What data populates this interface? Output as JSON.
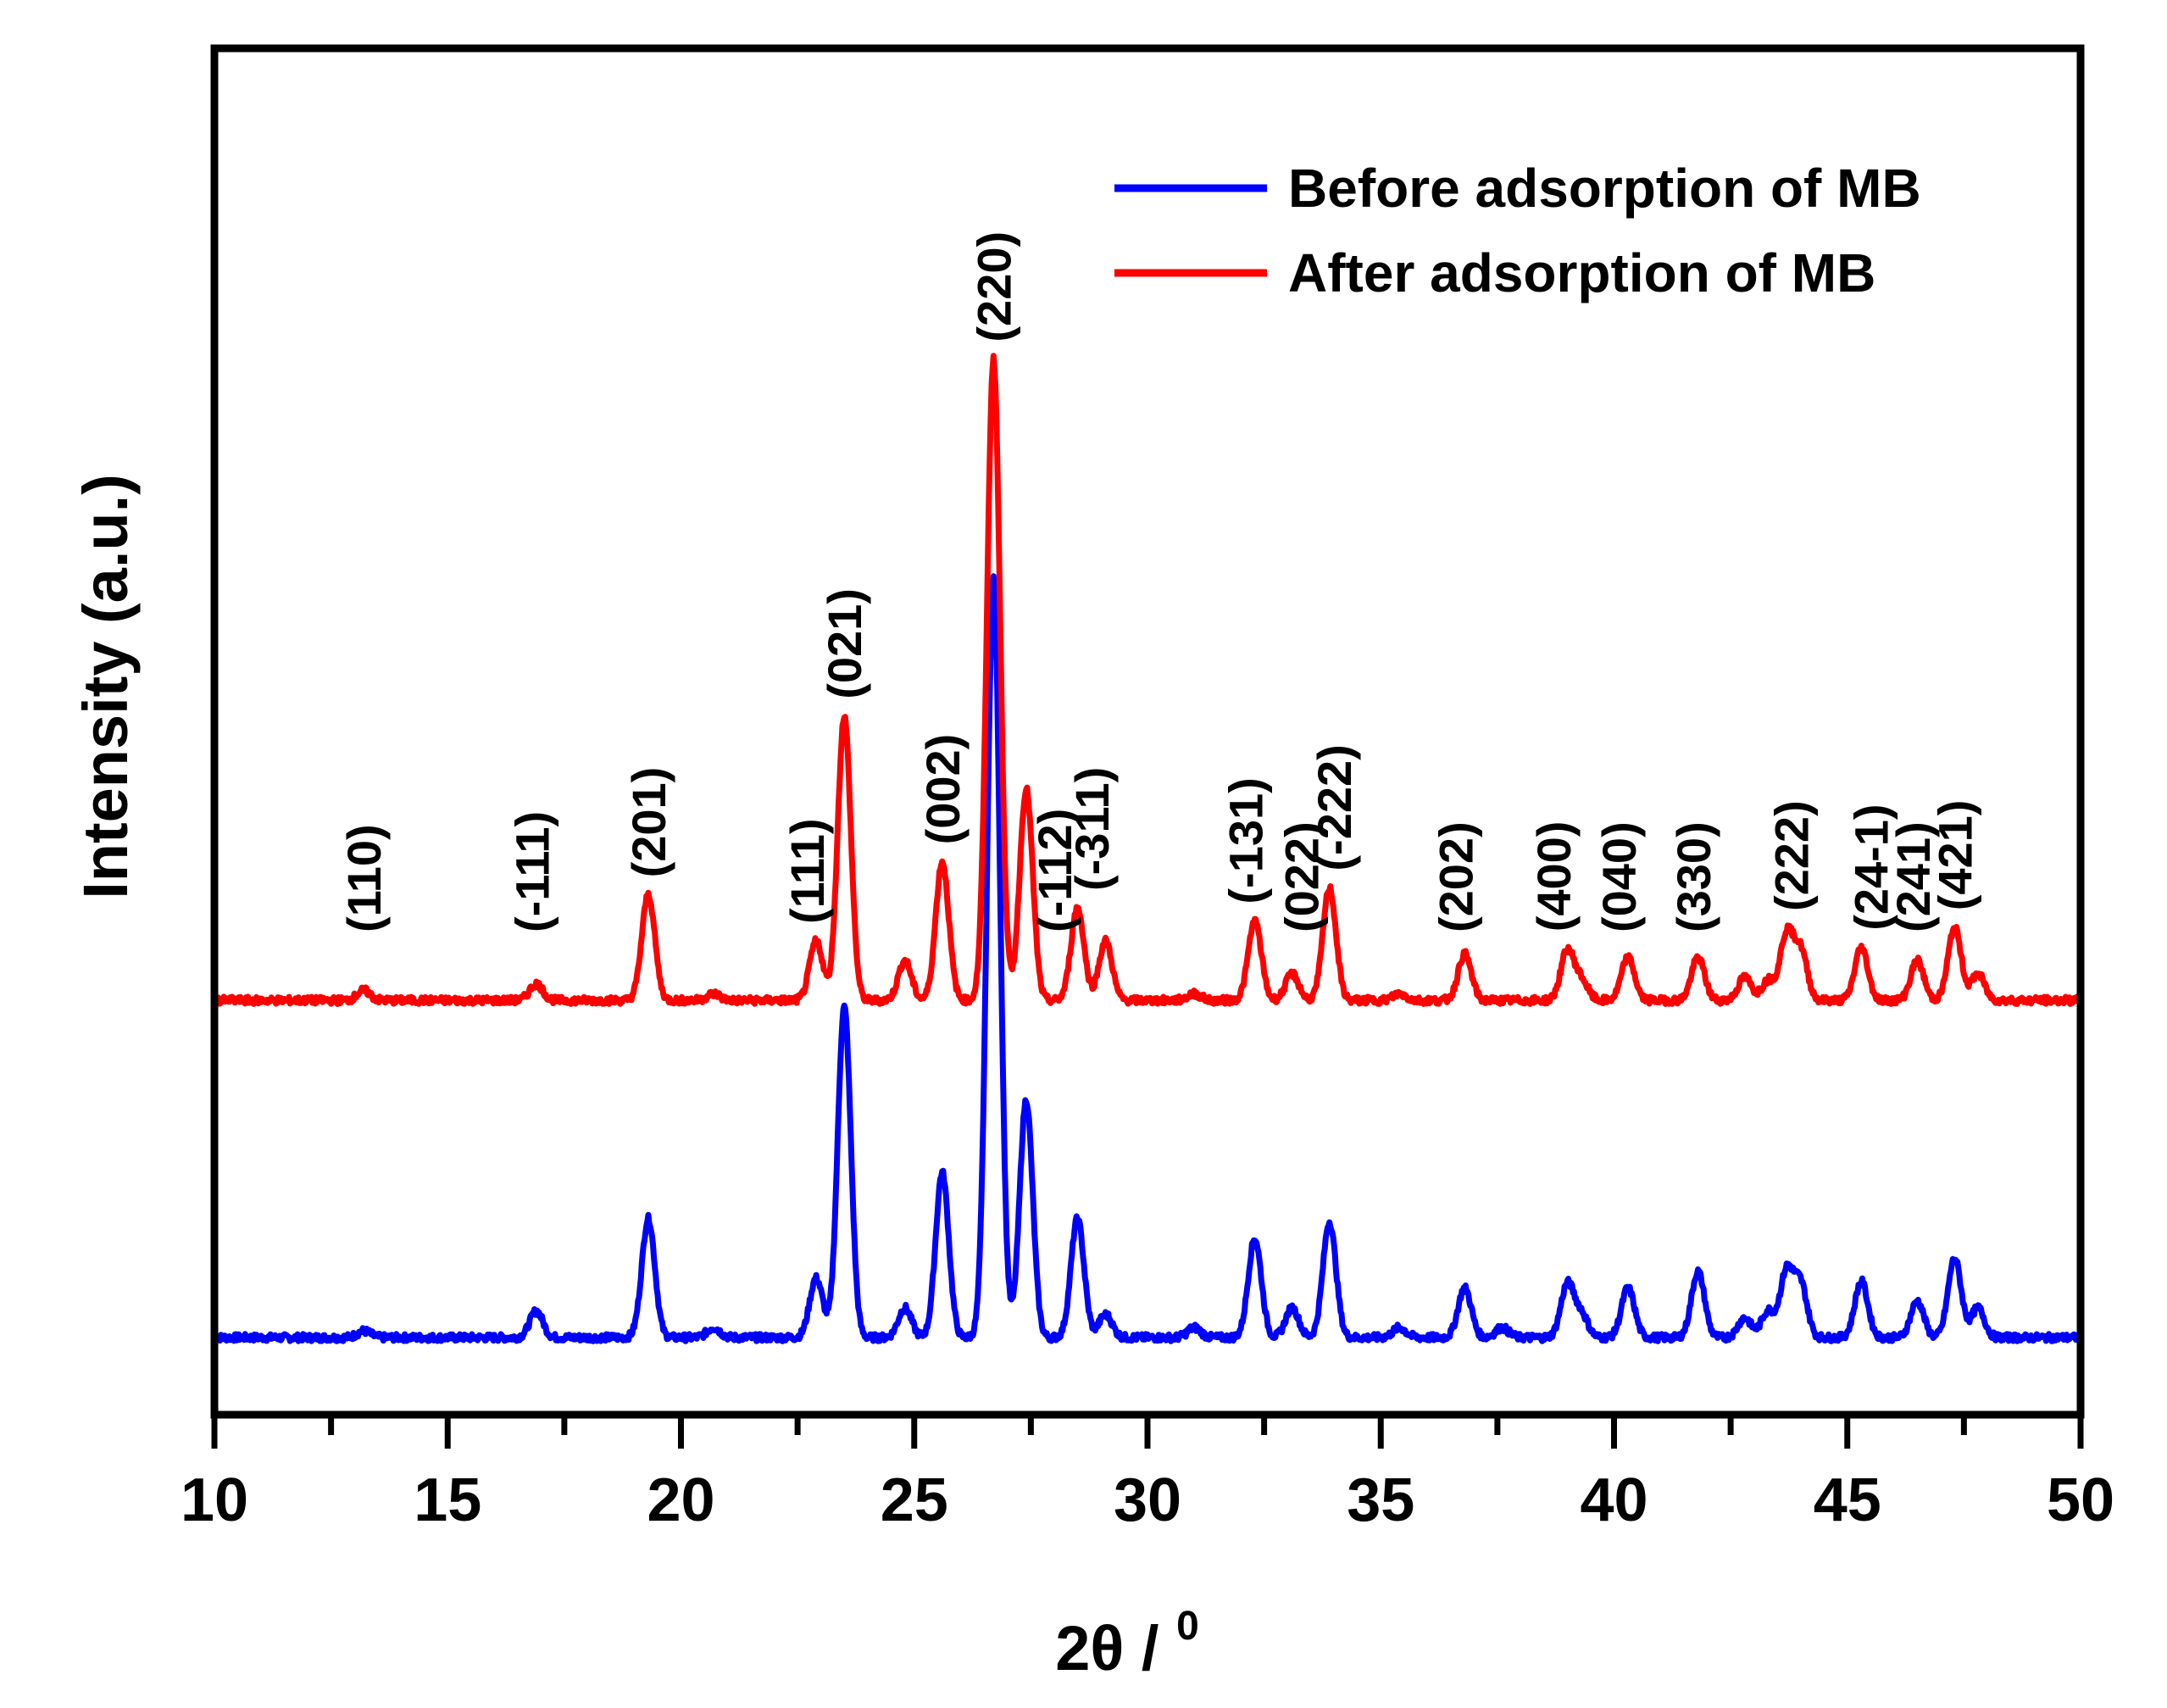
{
  "chart_data": {
    "type": "line",
    "title": "",
    "xlabel": "2θ / ",
    "xlabel_superscript": "0",
    "ylabel": "Intensity (a.u.)",
    "xlim": [
      10,
      50
    ],
    "xticks": [
      10,
      15,
      20,
      25,
      30,
      35,
      40,
      45,
      50
    ],
    "xtick_labels": [
      "10",
      "15",
      "20",
      "25",
      "30",
      "35",
      "40",
      "45",
      "50"
    ],
    "yticks_shown": false,
    "grid": false,
    "legend_position": "top-right",
    "series": [
      {
        "name": "Before adsorption of MB",
        "color": "#0000ff",
        "baseline": 0,
        "peaks": [
          {
            "two_theta": 13.2,
            "height": 0.02
          },
          {
            "two_theta": 16.9,
            "height": 0.08
          },
          {
            "two_theta": 19.3,
            "height": 0.36
          },
          {
            "two_theta": 20.7,
            "height": 0.03
          },
          {
            "two_theta": 22.9,
            "height": 0.18
          },
          {
            "two_theta": 23.5,
            "height": 1.0
          },
          {
            "two_theta": 24.8,
            "height": 0.09
          },
          {
            "two_theta": 25.6,
            "height": 0.5
          },
          {
            "two_theta": 26.7,
            "height": 2.3
          },
          {
            "two_theta": 27.4,
            "height": 0.72
          },
          {
            "two_theta": 28.5,
            "height": 0.36
          },
          {
            "two_theta": 29.1,
            "height": 0.07
          },
          {
            "two_theta": 31.0,
            "height": 0.03
          },
          {
            "two_theta": 32.3,
            "height": 0.3
          },
          {
            "two_theta": 33.1,
            "height": 0.09
          },
          {
            "two_theta": 33.9,
            "height": 0.35
          },
          {
            "two_theta": 35.4,
            "height": 0.03
          },
          {
            "two_theta": 36.8,
            "height": 0.15
          },
          {
            "two_theta": 37.6,
            "height": 0.03
          },
          {
            "two_theta": 39.0,
            "height": 0.16
          },
          {
            "two_theta": 39.3,
            "height": 0.07
          },
          {
            "two_theta": 40.3,
            "height": 0.15
          },
          {
            "two_theta": 41.8,
            "height": 0.2
          },
          {
            "two_theta": 42.8,
            "height": 0.06
          },
          {
            "two_theta": 43.3,
            "height": 0.08
          },
          {
            "two_theta": 43.7,
            "height": 0.2
          },
          {
            "two_theta": 44.0,
            "height": 0.16
          },
          {
            "two_theta": 45.3,
            "height": 0.17
          },
          {
            "two_theta": 46.5,
            "height": 0.11
          },
          {
            "two_theta": 47.3,
            "height": 0.24
          },
          {
            "two_theta": 47.8,
            "height": 0.09
          }
        ]
      },
      {
        "name": "After adsorption of MB",
        "color": "#ff0000",
        "baseline": 1.02,
        "peaks": [
          {
            "two_theta": 13.2,
            "height": 0.03
          },
          {
            "two_theta": 16.9,
            "height": 0.05
          },
          {
            "two_theta": 19.3,
            "height": 0.32
          },
          {
            "two_theta": 20.7,
            "height": 0.02
          },
          {
            "two_theta": 22.9,
            "height": 0.18
          },
          {
            "two_theta": 23.5,
            "height": 0.86
          },
          {
            "two_theta": 24.8,
            "height": 0.12
          },
          {
            "two_theta": 25.6,
            "height": 0.42
          },
          {
            "two_theta": 26.7,
            "height": 1.94
          },
          {
            "two_theta": 27.4,
            "height": 0.64
          },
          {
            "two_theta": 28.5,
            "height": 0.28
          },
          {
            "two_theta": 29.1,
            "height": 0.18
          },
          {
            "two_theta": 31.0,
            "height": 0.02
          },
          {
            "two_theta": 32.3,
            "height": 0.24
          },
          {
            "two_theta": 33.1,
            "height": 0.08
          },
          {
            "two_theta": 33.9,
            "height": 0.34
          },
          {
            "two_theta": 35.4,
            "height": 0.02
          },
          {
            "two_theta": 36.8,
            "height": 0.14
          },
          {
            "two_theta": 39.0,
            "height": 0.15
          },
          {
            "two_theta": 39.3,
            "height": 0.06
          },
          {
            "two_theta": 40.3,
            "height": 0.13
          },
          {
            "two_theta": 41.8,
            "height": 0.13
          },
          {
            "two_theta": 42.8,
            "height": 0.07
          },
          {
            "two_theta": 43.3,
            "height": 0.06
          },
          {
            "two_theta": 43.7,
            "height": 0.2
          },
          {
            "two_theta": 44.0,
            "height": 0.15
          },
          {
            "two_theta": 45.3,
            "height": 0.16
          },
          {
            "two_theta": 46.5,
            "height": 0.12
          },
          {
            "two_theta": 47.3,
            "height": 0.22
          },
          {
            "two_theta": 47.8,
            "height": 0.08
          }
        ]
      }
    ],
    "annotations": [
      {
        "text": "(110)",
        "two_theta": 13.2
      },
      {
        "text": "(-111)",
        "two_theta": 16.8
      },
      {
        "text": "(201)",
        "two_theta": 19.3
      },
      {
        "text": "(111)",
        "two_theta": 22.7
      },
      {
        "text": "(021)",
        "two_theta": 23.5
      },
      {
        "text": "(002)",
        "two_theta": 25.6
      },
      {
        "text": "(220)",
        "two_theta": 26.7
      },
      {
        "text": "(-112)",
        "two_theta": 28.0
      },
      {
        "text": "(-311)",
        "two_theta": 28.8
      },
      {
        "text": "(-131)",
        "two_theta": 32.1
      },
      {
        "text": "(022)",
        "two_theta": 33.3
      },
      {
        "text": "(-222)",
        "two_theta": 34.0
      },
      {
        "text": "(202)",
        "two_theta": 36.6
      },
      {
        "text": "(400)",
        "two_theta": 38.7
      },
      {
        "text": "(040)",
        "two_theta": 40.1
      },
      {
        "text": "(330)",
        "two_theta": 41.7
      },
      {
        "text": "(222)",
        "two_theta": 43.8
      },
      {
        "text": "(24-1)",
        "two_theta": 45.5
      },
      {
        "text": "(241)",
        "two_theta": 46.4
      },
      {
        "text": "(421)",
        "two_theta": 47.3
      }
    ]
  }
}
